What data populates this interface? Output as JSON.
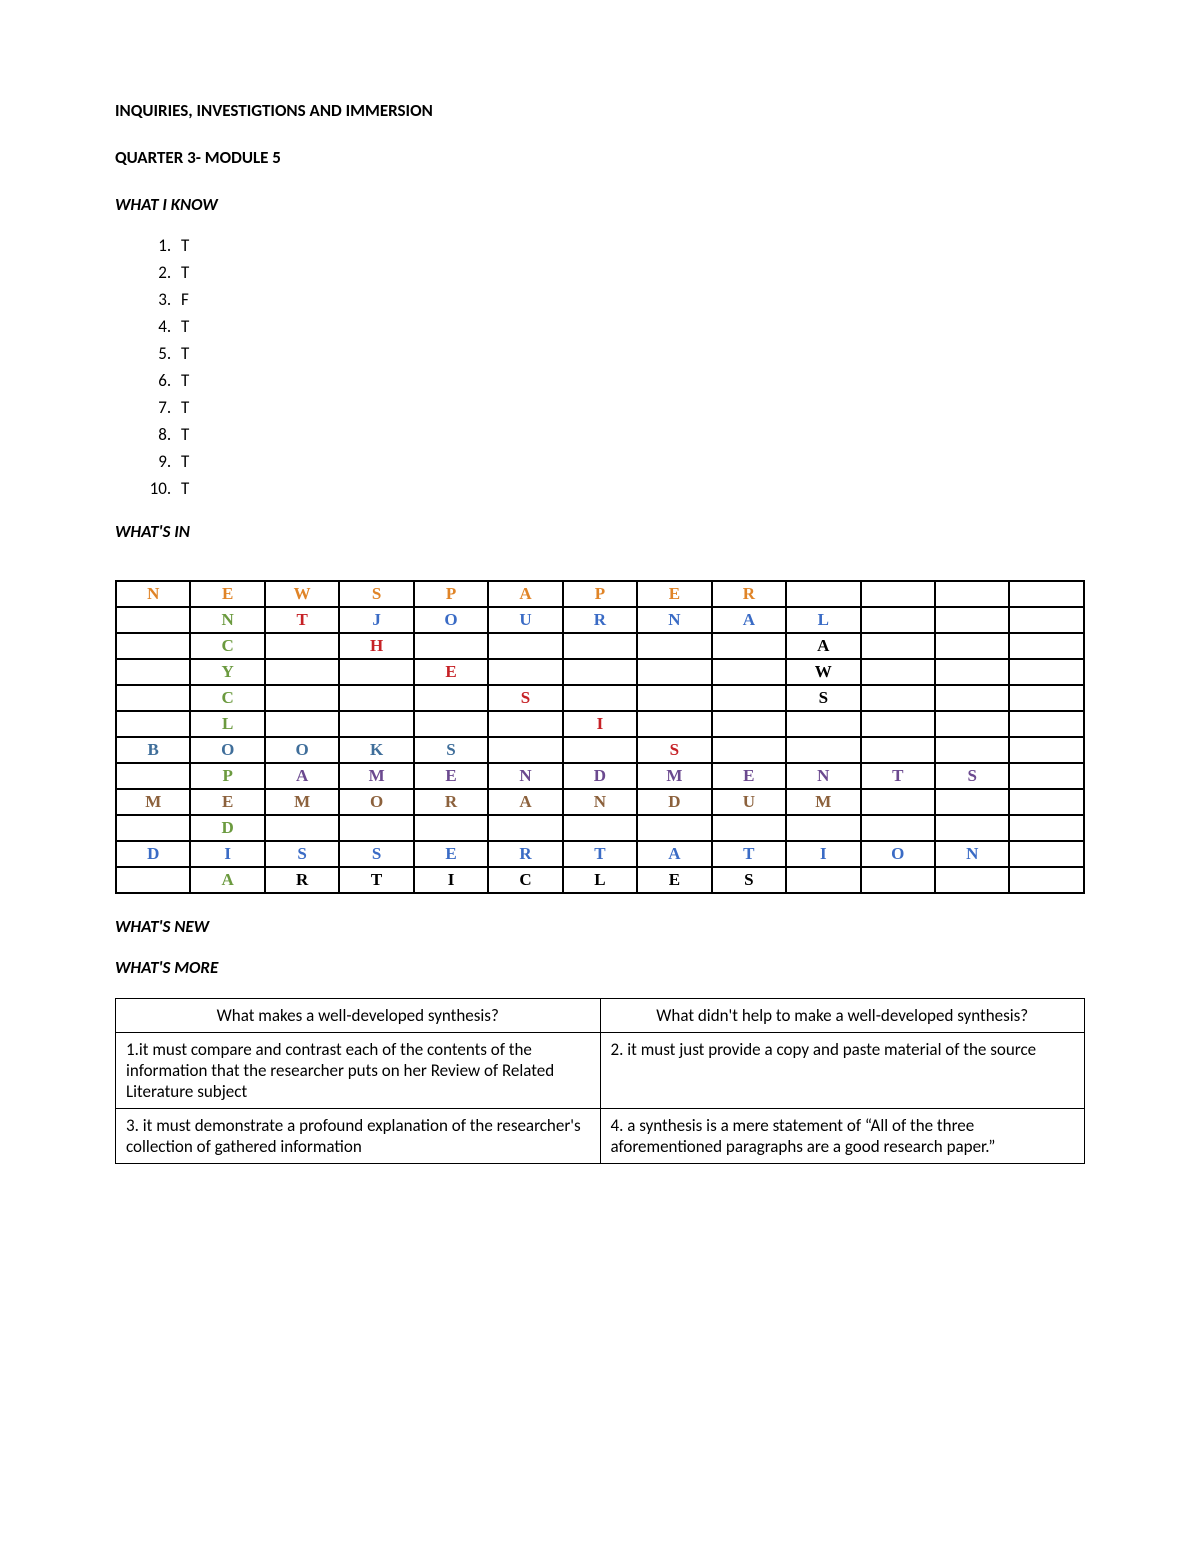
{
  "titles": {
    "main": "INQUIRIES, INVESTIGTIONS AND IMMERSION",
    "sub": "QUARTER 3- MODULE 5"
  },
  "sections": {
    "know": "WHAT I KNOW",
    "in": "WHAT'S IN",
    "new": "WHAT'S NEW",
    "more": "WHAT'S MORE"
  },
  "answers": [
    "T",
    "T",
    "F",
    "T",
    "T",
    "T",
    "T",
    "T",
    "T",
    "T"
  ],
  "colors": {
    "orange": "#e08427",
    "green": "#6b9a3f",
    "red": "#c62126",
    "blue": "#3a6bc5",
    "purple": "#6b498f",
    "brown": "#8c613c",
    "black": "#000000",
    "steel": "#3f6e9a"
  },
  "grid": {
    "cols": 13,
    "rows": [
      [
        [
          "N",
          "orange"
        ],
        [
          "E",
          "orange"
        ],
        [
          "W",
          "orange"
        ],
        [
          "S",
          "orange"
        ],
        [
          "P",
          "orange"
        ],
        [
          "A",
          "orange"
        ],
        [
          "P",
          "orange"
        ],
        [
          "E",
          "orange"
        ],
        [
          "R",
          "orange"
        ],
        [
          "",
          ""
        ],
        [
          "",
          ""
        ],
        [
          "",
          ""
        ],
        [
          "",
          ""
        ]
      ],
      [
        [
          "",
          ""
        ],
        [
          "N",
          "green"
        ],
        [
          "T",
          "red"
        ],
        [
          "J",
          "blue"
        ],
        [
          "O",
          "blue"
        ],
        [
          "U",
          "blue"
        ],
        [
          "R",
          "blue"
        ],
        [
          "N",
          "blue"
        ],
        [
          "A",
          "blue"
        ],
        [
          "L",
          "blue"
        ],
        [
          "",
          ""
        ],
        [
          "",
          ""
        ],
        [
          "",
          ""
        ]
      ],
      [
        [
          "",
          ""
        ],
        [
          "C",
          "green"
        ],
        [
          "",
          ""
        ],
        [
          "H",
          "red"
        ],
        [
          "",
          ""
        ],
        [
          "",
          ""
        ],
        [
          "",
          ""
        ],
        [
          "",
          ""
        ],
        [
          "",
          ""
        ],
        [
          "A",
          "black"
        ],
        [
          "",
          ""
        ],
        [
          "",
          ""
        ],
        [
          "",
          ""
        ]
      ],
      [
        [
          "",
          ""
        ],
        [
          "Y",
          "green"
        ],
        [
          "",
          ""
        ],
        [
          "",
          ""
        ],
        [
          "E",
          "red"
        ],
        [
          "",
          ""
        ],
        [
          "",
          ""
        ],
        [
          "",
          ""
        ],
        [
          "",
          ""
        ],
        [
          "W",
          "black"
        ],
        [
          "",
          ""
        ],
        [
          "",
          ""
        ],
        [
          "",
          ""
        ]
      ],
      [
        [
          "",
          ""
        ],
        [
          "C",
          "green"
        ],
        [
          "",
          ""
        ],
        [
          "",
          ""
        ],
        [
          "",
          ""
        ],
        [
          "S",
          "red"
        ],
        [
          "",
          ""
        ],
        [
          "",
          ""
        ],
        [
          "",
          ""
        ],
        [
          "S",
          "black"
        ],
        [
          "",
          ""
        ],
        [
          "",
          ""
        ],
        [
          "",
          ""
        ]
      ],
      [
        [
          "",
          ""
        ],
        [
          "L",
          "green"
        ],
        [
          "",
          ""
        ],
        [
          "",
          ""
        ],
        [
          "",
          ""
        ],
        [
          "",
          ""
        ],
        [
          "I",
          "red"
        ],
        [
          "",
          ""
        ],
        [
          "",
          ""
        ],
        [
          "",
          ""
        ],
        [
          "",
          ""
        ],
        [
          "",
          ""
        ],
        [
          "",
          ""
        ]
      ],
      [
        [
          "B",
          "steel"
        ],
        [
          "O",
          "steel"
        ],
        [
          "O",
          "steel"
        ],
        [
          "K",
          "steel"
        ],
        [
          "S",
          "steel"
        ],
        [
          "",
          ""
        ],
        [
          "",
          ""
        ],
        [
          "S",
          "red"
        ],
        [
          "",
          ""
        ],
        [
          "",
          ""
        ],
        [
          "",
          ""
        ],
        [
          "",
          ""
        ],
        [
          "",
          ""
        ]
      ],
      [
        [
          "",
          ""
        ],
        [
          "P",
          "green"
        ],
        [
          "A",
          "purple"
        ],
        [
          "M",
          "purple"
        ],
        [
          "E",
          "purple"
        ],
        [
          "N",
          "purple"
        ],
        [
          "D",
          "purple"
        ],
        [
          "M",
          "purple"
        ],
        [
          "E",
          "purple"
        ],
        [
          "N",
          "purple"
        ],
        [
          "T",
          "purple"
        ],
        [
          "S",
          "purple"
        ],
        [
          "",
          ""
        ]
      ],
      [
        [
          "M",
          "brown"
        ],
        [
          "E",
          "brown"
        ],
        [
          "M",
          "brown"
        ],
        [
          "O",
          "brown"
        ],
        [
          "R",
          "brown"
        ],
        [
          "A",
          "brown"
        ],
        [
          "N",
          "brown"
        ],
        [
          "D",
          "brown"
        ],
        [
          "U",
          "brown"
        ],
        [
          "M",
          "brown"
        ],
        [
          "",
          ""
        ],
        [
          "",
          ""
        ],
        [
          "",
          ""
        ]
      ],
      [
        [
          "",
          ""
        ],
        [
          "D",
          "green"
        ],
        [
          "",
          ""
        ],
        [
          "",
          ""
        ],
        [
          "",
          ""
        ],
        [
          "",
          ""
        ],
        [
          "",
          ""
        ],
        [
          "",
          ""
        ],
        [
          "",
          ""
        ],
        [
          "",
          ""
        ],
        [
          "",
          ""
        ],
        [
          "",
          ""
        ],
        [
          "",
          ""
        ]
      ],
      [
        [
          "D",
          "blue"
        ],
        [
          "I",
          "blue"
        ],
        [
          "S",
          "blue"
        ],
        [
          "S",
          "blue"
        ],
        [
          "E",
          "blue"
        ],
        [
          "R",
          "blue"
        ],
        [
          "T",
          "blue"
        ],
        [
          "A",
          "blue"
        ],
        [
          "T",
          "blue"
        ],
        [
          "I",
          "blue"
        ],
        [
          "O",
          "blue"
        ],
        [
          "N",
          "blue"
        ],
        [
          "",
          ""
        ]
      ],
      [
        [
          "",
          ""
        ],
        [
          "A",
          "green"
        ],
        [
          "R",
          "black"
        ],
        [
          "T",
          "black"
        ],
        [
          "I",
          "black"
        ],
        [
          "C",
          "black"
        ],
        [
          "L",
          "black"
        ],
        [
          "E",
          "black"
        ],
        [
          "S",
          "black"
        ],
        [
          "",
          ""
        ],
        [
          "",
          ""
        ],
        [
          "",
          ""
        ],
        [
          "",
          ""
        ]
      ]
    ]
  },
  "synth": {
    "h1": "What makes a well-developed synthesis?",
    "h2": "What didn't help to make a well-developed synthesis?",
    "r1c1": "1.it must compare and contrast each of the contents of the information that the researcher puts on her Review of Related Literature subject",
    "r1c2": "2. it must just provide a copy and paste material of the source",
    "r2c1": "3. it must  demonstrate a profound explanation of the researcher's collection of gathered information",
    "r2c2": "4. a synthesis is a mere statement of “All of the three aforementioned paragraphs are a good research paper.”"
  }
}
